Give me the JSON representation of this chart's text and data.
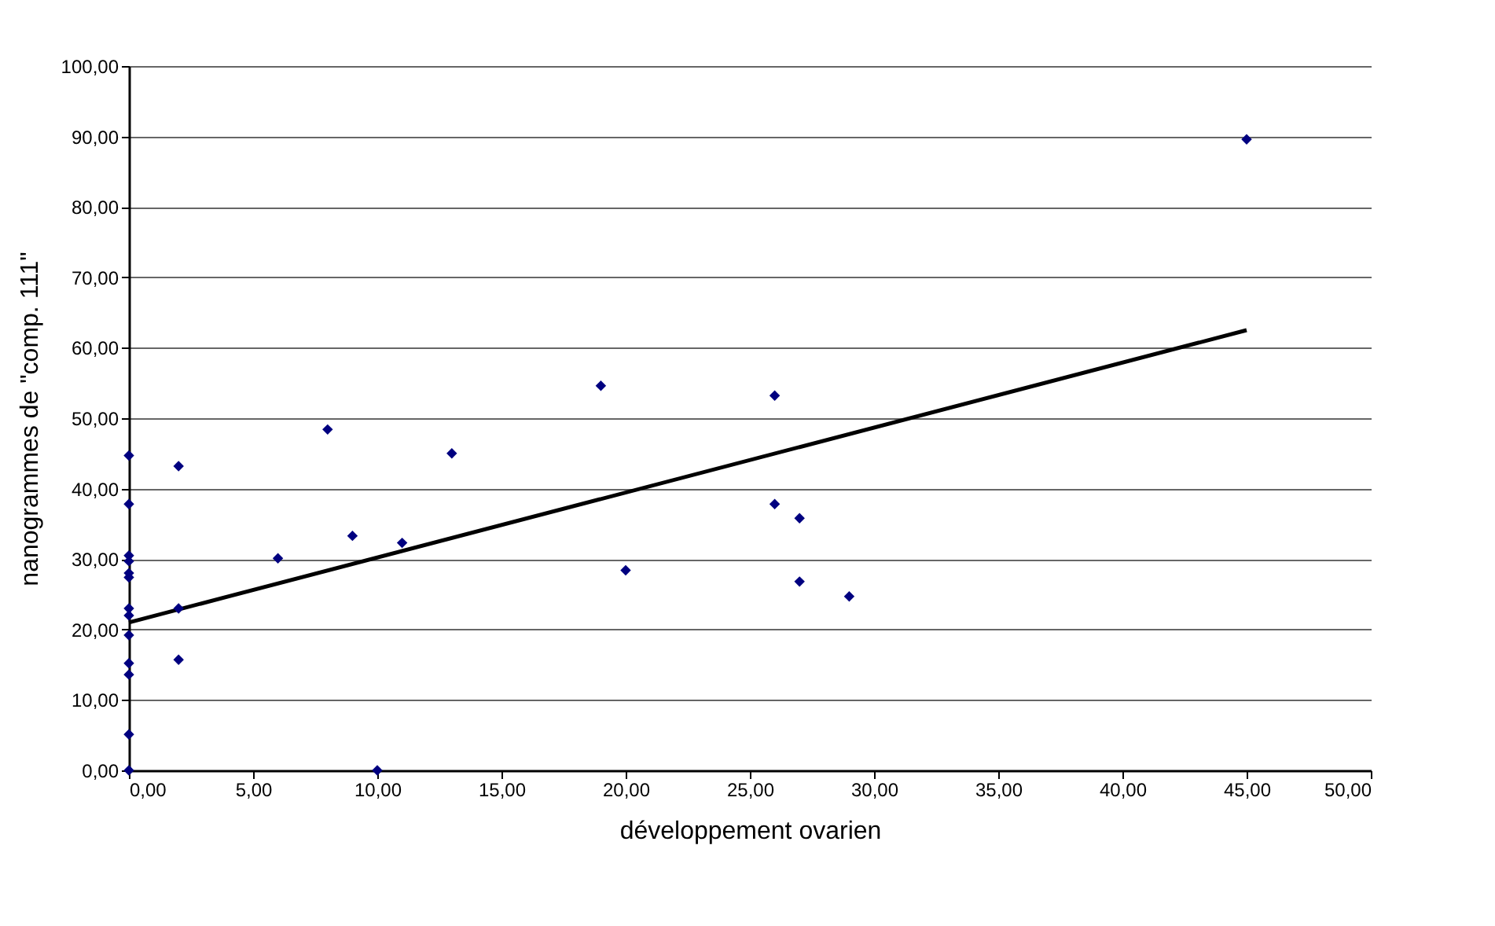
{
  "chart_data": {
    "type": "scatter",
    "xlabel": "développement ovarien",
    "ylabel": "nanogrammes de \"comp. 111\"",
    "xlim": [
      0,
      50
    ],
    "xticks": [
      {
        "value": 0,
        "label": "0,00"
      },
      {
        "value": 5,
        "label": "5,00"
      },
      {
        "value": 10,
        "label": "10,00"
      },
      {
        "value": 15,
        "label": "15,00"
      },
      {
        "value": 20,
        "label": "20,00"
      },
      {
        "value": 25,
        "label": "25,00"
      },
      {
        "value": 30,
        "label": "30,00"
      },
      {
        "value": 35,
        "label": "35,00"
      },
      {
        "value": 40,
        "label": "40,00"
      },
      {
        "value": 45,
        "label": "45,00"
      },
      {
        "value": 50,
        "label": "50,00"
      }
    ],
    "ylim": [
      0,
      100
    ],
    "yticks": [
      {
        "value": 0,
        "label": "0,00"
      },
      {
        "value": 10,
        "label": "10,00"
      },
      {
        "value": 20,
        "label": "20,00"
      },
      {
        "value": 30,
        "label": "30,00"
      },
      {
        "value": 40,
        "label": "40,00"
      },
      {
        "value": 50,
        "label": "50,00"
      },
      {
        "value": 60,
        "label": "60,00"
      },
      {
        "value": 70,
        "label": "70,00"
      },
      {
        "value": 80,
        "label": "80,00"
      },
      {
        "value": 90,
        "label": "90,00"
      },
      {
        "value": 100,
        "label": "100,00"
      }
    ],
    "grid": "y",
    "series": [
      {
        "marker": "diamond",
        "color": "#000080",
        "x": [
          0,
          0,
          0,
          0,
          0,
          0,
          0,
          0,
          0,
          0,
          0,
          0,
          0,
          2,
          2,
          2,
          6,
          8,
          9,
          10,
          11,
          13,
          19,
          20,
          26,
          26,
          27,
          27,
          29,
          45
        ],
        "values": [
          44.7,
          37.8,
          30.5,
          29.7,
          28,
          27.4,
          23,
          22,
          19.2,
          15.2,
          13.6,
          5.1,
          0,
          43.2,
          23,
          15.7,
          30.1,
          48.4,
          33.3,
          0,
          32.3,
          45,
          54.6,
          28.4,
          53.2,
          37.8,
          35.8,
          26.8,
          24.7,
          89.6
        ]
      },
      {
        "type": "line",
        "color": "#000000",
        "x": [
          0,
          45
        ],
        "values": [
          21,
          62.5
        ]
      }
    ]
  }
}
